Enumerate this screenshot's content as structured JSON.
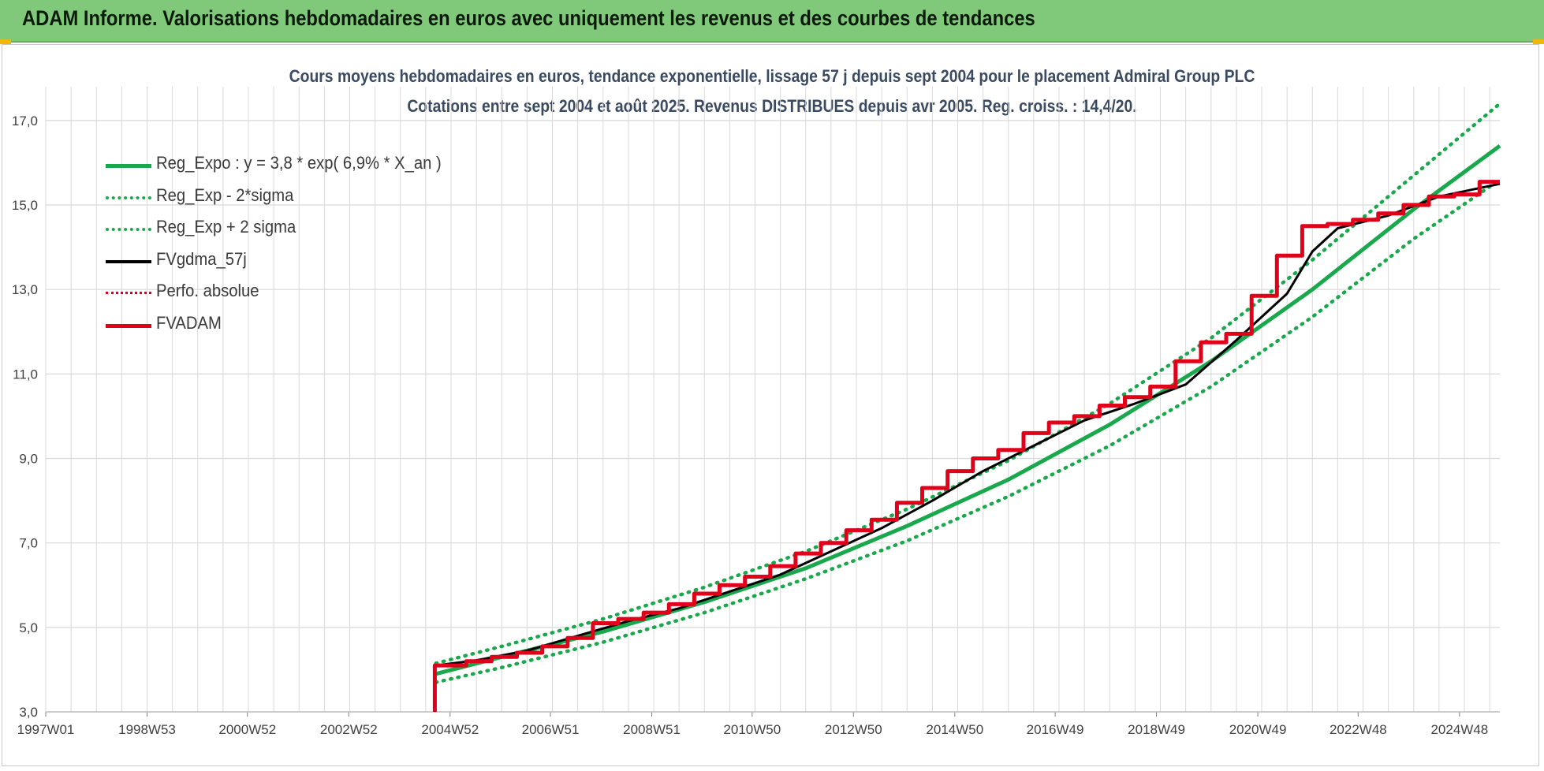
{
  "banner": {
    "title": "ADAM Informe. Valorisations hebdomadaires en euros avec uniquement les revenus et des courbes de tendances"
  },
  "colors": {
    "banner_bg": "#80c87a",
    "trend_green": "#19a84c",
    "perf_red": "#e0001a",
    "fv_black": "#000000",
    "grid": "#d9d9d9",
    "title_text": "#3a4a60"
  },
  "chart_data": {
    "type": "line",
    "title_line1": "Cours moyens hebdomadaires en euros, tendance exponentielle, lissage 57 j depuis sept 2004 pour le placement Admiral Group PLC",
    "title_line2": "Cotations entre sept 2004 et août 2025. Revenus DISTRIBUES depuis avr 2005. Reg. croiss. : 14,4/20.",
    "x_ticks": [
      "1997W01",
      "1998W53",
      "2000W52",
      "2002W52",
      "2004W52",
      "2006W51",
      "2008W51",
      "2010W50",
      "2012W50",
      "2014W50",
      "2016W49",
      "2018W49",
      "2020W49",
      "2022W48",
      "2024W48"
    ],
    "y_ticks": [
      "3,0",
      "5,0",
      "7,0",
      "9,0",
      "11,0",
      "13,0",
      "15,0",
      "17,0"
    ],
    "ylim": [
      3,
      17.8
    ],
    "xlim": [
      1997.0,
      2025.7
    ],
    "grid": "on",
    "legend_position": "top-left",
    "legend": [
      {
        "label": "Reg_Expo : y = 3,8 * exp( 6,9% *  X_an )",
        "style": "solid-green"
      },
      {
        "label": "Reg_Exp - 2*sigma",
        "style": "dotted-green"
      },
      {
        "label": "Reg_Exp + 2 sigma",
        "style": "dotted-green"
      },
      {
        "label": "FVgdma_57j",
        "style": "solid-black"
      },
      {
        "label": "Perfo. absolue",
        "style": "dotted-red"
      },
      {
        "label": "FVADAM",
        "style": "solid-red"
      }
    ],
    "series": [
      {
        "name": "Reg_Expo : y = 3,8 * exp( 6,9% *  X_an )",
        "x": [
          2004.7,
          2006.0,
          2008.0,
          2010.0,
          2012.0,
          2014.0,
          2016.0,
          2018.0,
          2020.0,
          2022.0,
          2024.0,
          2025.7
        ],
        "y": [
          3.9,
          4.3,
          4.9,
          5.6,
          6.4,
          7.4,
          8.5,
          9.8,
          11.3,
          13.0,
          14.9,
          16.4
        ]
      },
      {
        "name": "Reg_Exp - 2*sigma",
        "x": [
          2004.7,
          2006.0,
          2008.0,
          2010.0,
          2012.0,
          2014.0,
          2016.0,
          2018.0,
          2020.0,
          2022.0,
          2024.0,
          2025.7
        ],
        "y": [
          3.7,
          4.05,
          4.65,
          5.35,
          6.15,
          7.05,
          8.1,
          9.3,
          10.7,
          12.35,
          14.2,
          15.6
        ]
      },
      {
        "name": "Reg_Exp + 2 sigma",
        "x": [
          2004.7,
          2006.0,
          2008.0,
          2010.0,
          2012.0,
          2014.0,
          2016.0,
          2018.0,
          2020.0,
          2022.0,
          2024.0,
          2025.7
        ],
        "y": [
          4.15,
          4.55,
          5.2,
          5.95,
          6.8,
          7.8,
          8.95,
          10.3,
          11.85,
          13.7,
          15.7,
          17.4
        ]
      },
      {
        "name": "FVADAM",
        "x": [
          2004.68,
          2004.68,
          2005.3,
          2005.3,
          2005.8,
          2005.8,
          2006.3,
          2006.3,
          2006.8,
          2006.8,
          2007.3,
          2007.3,
          2007.8,
          2007.8,
          2008.3,
          2008.3,
          2008.8,
          2008.8,
          2009.3,
          2009.3,
          2009.8,
          2009.8,
          2010.3,
          2010.3,
          2010.8,
          2010.8,
          2011.3,
          2011.3,
          2011.8,
          2011.8,
          2012.3,
          2012.3,
          2012.8,
          2012.8,
          2013.3,
          2013.3,
          2013.8,
          2013.8,
          2014.3,
          2014.3,
          2014.8,
          2014.8,
          2015.3,
          2015.3,
          2015.8,
          2015.8,
          2016.3,
          2016.3,
          2016.8,
          2016.8,
          2017.3,
          2017.3,
          2017.8,
          2017.8,
          2018.3,
          2018.3,
          2018.8,
          2018.8,
          2019.3,
          2019.3,
          2019.8,
          2019.8,
          2020.3,
          2020.3,
          2020.8,
          2020.8,
          2021.3,
          2021.3,
          2021.8,
          2021.8,
          2022.3,
          2022.3,
          2022.8,
          2022.8,
          2023.3,
          2023.3,
          2023.8,
          2023.8,
          2024.3,
          2024.3,
          2024.8,
          2024.8,
          2025.3,
          2025.3,
          2025.7
        ],
        "y": [
          3.0,
          4.1,
          4.1,
          4.2,
          4.2,
          4.3,
          4.3,
          4.4,
          4.4,
          4.55,
          4.55,
          4.75,
          4.75,
          5.1,
          5.1,
          5.2,
          5.2,
          5.35,
          5.35,
          5.55,
          5.55,
          5.8,
          5.8,
          6.0,
          6.0,
          6.2,
          6.2,
          6.45,
          6.45,
          6.75,
          6.75,
          7.0,
          7.0,
          7.3,
          7.3,
          7.55,
          7.55,
          7.95,
          7.95,
          8.3,
          8.3,
          8.7,
          8.7,
          9.0,
          9.0,
          9.2,
          9.2,
          9.6,
          9.6,
          9.85,
          9.85,
          10.0,
          10.0,
          10.25,
          10.25,
          10.45,
          10.45,
          10.7,
          10.7,
          11.3,
          11.3,
          11.75,
          11.75,
          11.95,
          11.95,
          12.85,
          12.85,
          13.8,
          13.8,
          14.5,
          14.5,
          14.55,
          14.55,
          14.65,
          14.65,
          14.8,
          14.8,
          15.0,
          15.0,
          15.2,
          15.2,
          15.25,
          15.25,
          15.55,
          15.55
        ]
      },
      {
        "name": "FVgdma_57j",
        "x": [
          2004.7,
          2005.5,
          2006.5,
          2007.5,
          2008.5,
          2009.5,
          2010.5,
          2011.5,
          2012.5,
          2013.5,
          2014.5,
          2015.5,
          2016.5,
          2017.5,
          2018.5,
          2019.5,
          2020.5,
          2021.5,
          2022.0,
          2022.5,
          2023.5,
          2024.5,
          2025.7
        ],
        "y": [
          4.1,
          4.22,
          4.45,
          4.8,
          5.15,
          5.45,
          5.85,
          6.25,
          6.8,
          7.35,
          8.0,
          8.7,
          9.3,
          9.9,
          10.3,
          10.75,
          11.8,
          12.9,
          13.9,
          14.45,
          14.75,
          15.2,
          15.5
        ]
      },
      {
        "name": "Perfo. absolue",
        "x": [],
        "y": []
      }
    ]
  }
}
